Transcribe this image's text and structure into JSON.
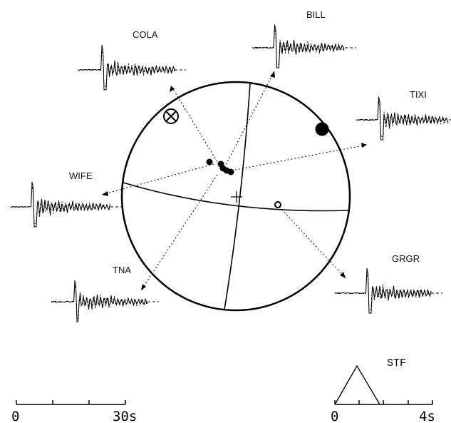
{
  "stations": [
    {
      "name": "COLA"
    },
    {
      "name": "BILL"
    },
    {
      "name": "TIXI"
    },
    {
      "name": "WIFE"
    },
    {
      "name": "TNA"
    },
    {
      "name": "GRGR"
    }
  ],
  "time_scale": {
    "start_label": "0",
    "end_label": "30s"
  },
  "stf": {
    "title": "STF",
    "start_label": "0",
    "end_label": "4s"
  }
}
